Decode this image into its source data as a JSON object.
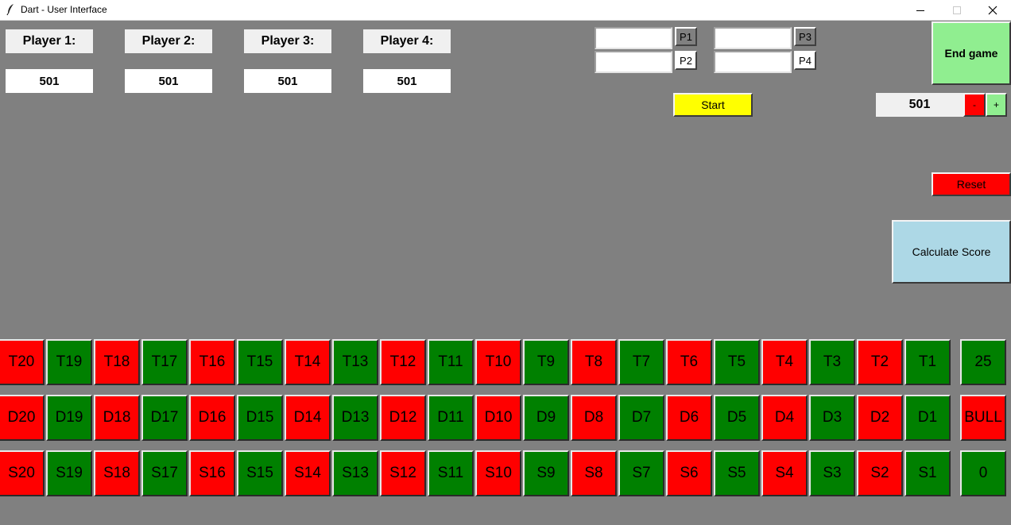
{
  "window": {
    "title": "Dart - User Interface"
  },
  "colors": {
    "red": "#ff0000",
    "green": "#008000",
    "yellow": "#ffff00",
    "light_green": "#90ee90",
    "light_blue": "#add8e6",
    "background": "#808080"
  },
  "players": [
    {
      "label": "Player 1:",
      "score": "501"
    },
    {
      "label": "Player 2:",
      "score": "501"
    },
    {
      "label": "Player 3:",
      "score": "501"
    },
    {
      "label": "Player 4:",
      "score": "501"
    }
  ],
  "name_inputs": [
    {
      "button": "P1",
      "value": ""
    },
    {
      "button": "P2",
      "value": ""
    },
    {
      "button": "P3",
      "value": ""
    },
    {
      "button": "P4",
      "value": ""
    }
  ],
  "controls": {
    "start": "Start",
    "end_game": "End game",
    "start_score": "501",
    "minus": "-",
    "plus": "+",
    "reset": "Reset",
    "calculate": "Calculate Score"
  },
  "board": {
    "triples": [
      "T20",
      "T19",
      "T18",
      "T17",
      "T16",
      "T15",
      "T14",
      "T13",
      "T12",
      "T11",
      "T10",
      "T9",
      "T8",
      "T7",
      "T6",
      "T5",
      "T4",
      "T3",
      "T2",
      "T1"
    ],
    "doubles": [
      "D20",
      "D19",
      "D18",
      "D17",
      "D16",
      "D15",
      "D14",
      "D13",
      "D12",
      "D11",
      "D10",
      "D9",
      "D8",
      "D7",
      "D6",
      "D5",
      "D4",
      "D3",
      "D2",
      "D1"
    ],
    "singles": [
      "S20",
      "S19",
      "S18",
      "S17",
      "S16",
      "S15",
      "S14",
      "S13",
      "S12",
      "S11",
      "S10",
      "S9",
      "S8",
      "S7",
      "S6",
      "S5",
      "S4",
      "S3",
      "S2",
      "S1"
    ],
    "extras": [
      "25",
      "BULL",
      "0"
    ]
  }
}
